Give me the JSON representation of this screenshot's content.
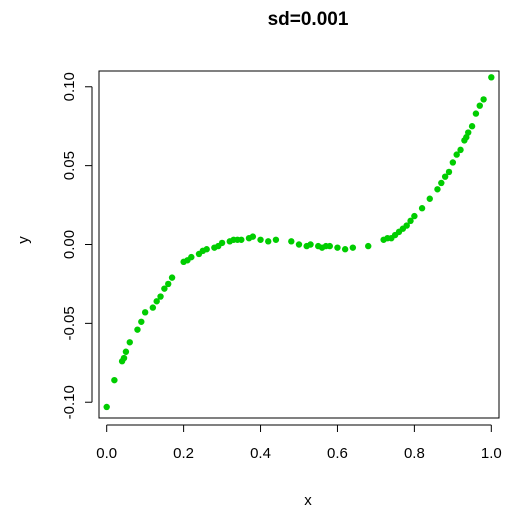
{
  "chart_data": {
    "type": "scatter",
    "title": "sd=0.001",
    "xlabel": "x",
    "ylabel": "y",
    "xlim": [
      -0.02,
      1.02
    ],
    "ylim": [
      -0.11,
      0.11
    ],
    "x_ticks": [
      0.0,
      0.2,
      0.4,
      0.6,
      0.8,
      1.0
    ],
    "x_tick_labels": [
      "0.0",
      "0.2",
      "0.4",
      "0.6",
      "0.8",
      "1.0"
    ],
    "y_ticks": [
      -0.1,
      -0.05,
      0.0,
      0.05,
      0.1
    ],
    "y_tick_labels": [
      "-0.10",
      "-0.05",
      "0.00",
      "0.05",
      "0.10"
    ],
    "grid": false,
    "point_color": "#00cd00",
    "series": [
      {
        "x": [
          0.0,
          0.02,
          0.04,
          0.045,
          0.05,
          0.06,
          0.08,
          0.09,
          0.1,
          0.12,
          0.13,
          0.14,
          0.15,
          0.16,
          0.17,
          0.2,
          0.21,
          0.22,
          0.24,
          0.25,
          0.26,
          0.28,
          0.29,
          0.3,
          0.32,
          0.33,
          0.34,
          0.35,
          0.37,
          0.38,
          0.4,
          0.42,
          0.44,
          0.48,
          0.5,
          0.52,
          0.53,
          0.55,
          0.56,
          0.57,
          0.58,
          0.6,
          0.62,
          0.64,
          0.68,
          0.72,
          0.73,
          0.74,
          0.75,
          0.76,
          0.77,
          0.78,
          0.79,
          0.8,
          0.82,
          0.84,
          0.86,
          0.87,
          0.88,
          0.89,
          0.9,
          0.91,
          0.92,
          0.93,
          0.935,
          0.94,
          0.95,
          0.96,
          0.97,
          0.98,
          1.0
        ],
        "y": [
          -0.103,
          -0.086,
          -0.074,
          -0.072,
          -0.068,
          -0.062,
          -0.054,
          -0.049,
          -0.043,
          -0.04,
          -0.036,
          -0.033,
          -0.028,
          -0.025,
          -0.021,
          -0.011,
          -0.01,
          -0.008,
          -0.006,
          -0.004,
          -0.003,
          -0.002,
          -0.001,
          0.001,
          0.002,
          0.003,
          0.003,
          0.003,
          0.004,
          0.005,
          0.003,
          0.002,
          0.003,
          0.002,
          0.0,
          -0.001,
          0.0,
          -0.001,
          -0.002,
          -0.001,
          -0.001,
          -0.002,
          -0.003,
          -0.002,
          -0.001,
          0.003,
          0.004,
          0.004,
          0.006,
          0.008,
          0.01,
          0.012,
          0.015,
          0.018,
          0.023,
          0.029,
          0.035,
          0.039,
          0.043,
          0.046,
          0.052,
          0.057,
          0.06,
          0.066,
          0.068,
          0.071,
          0.075,
          0.083,
          0.088,
          0.092,
          0.106
        ]
      }
    ]
  }
}
